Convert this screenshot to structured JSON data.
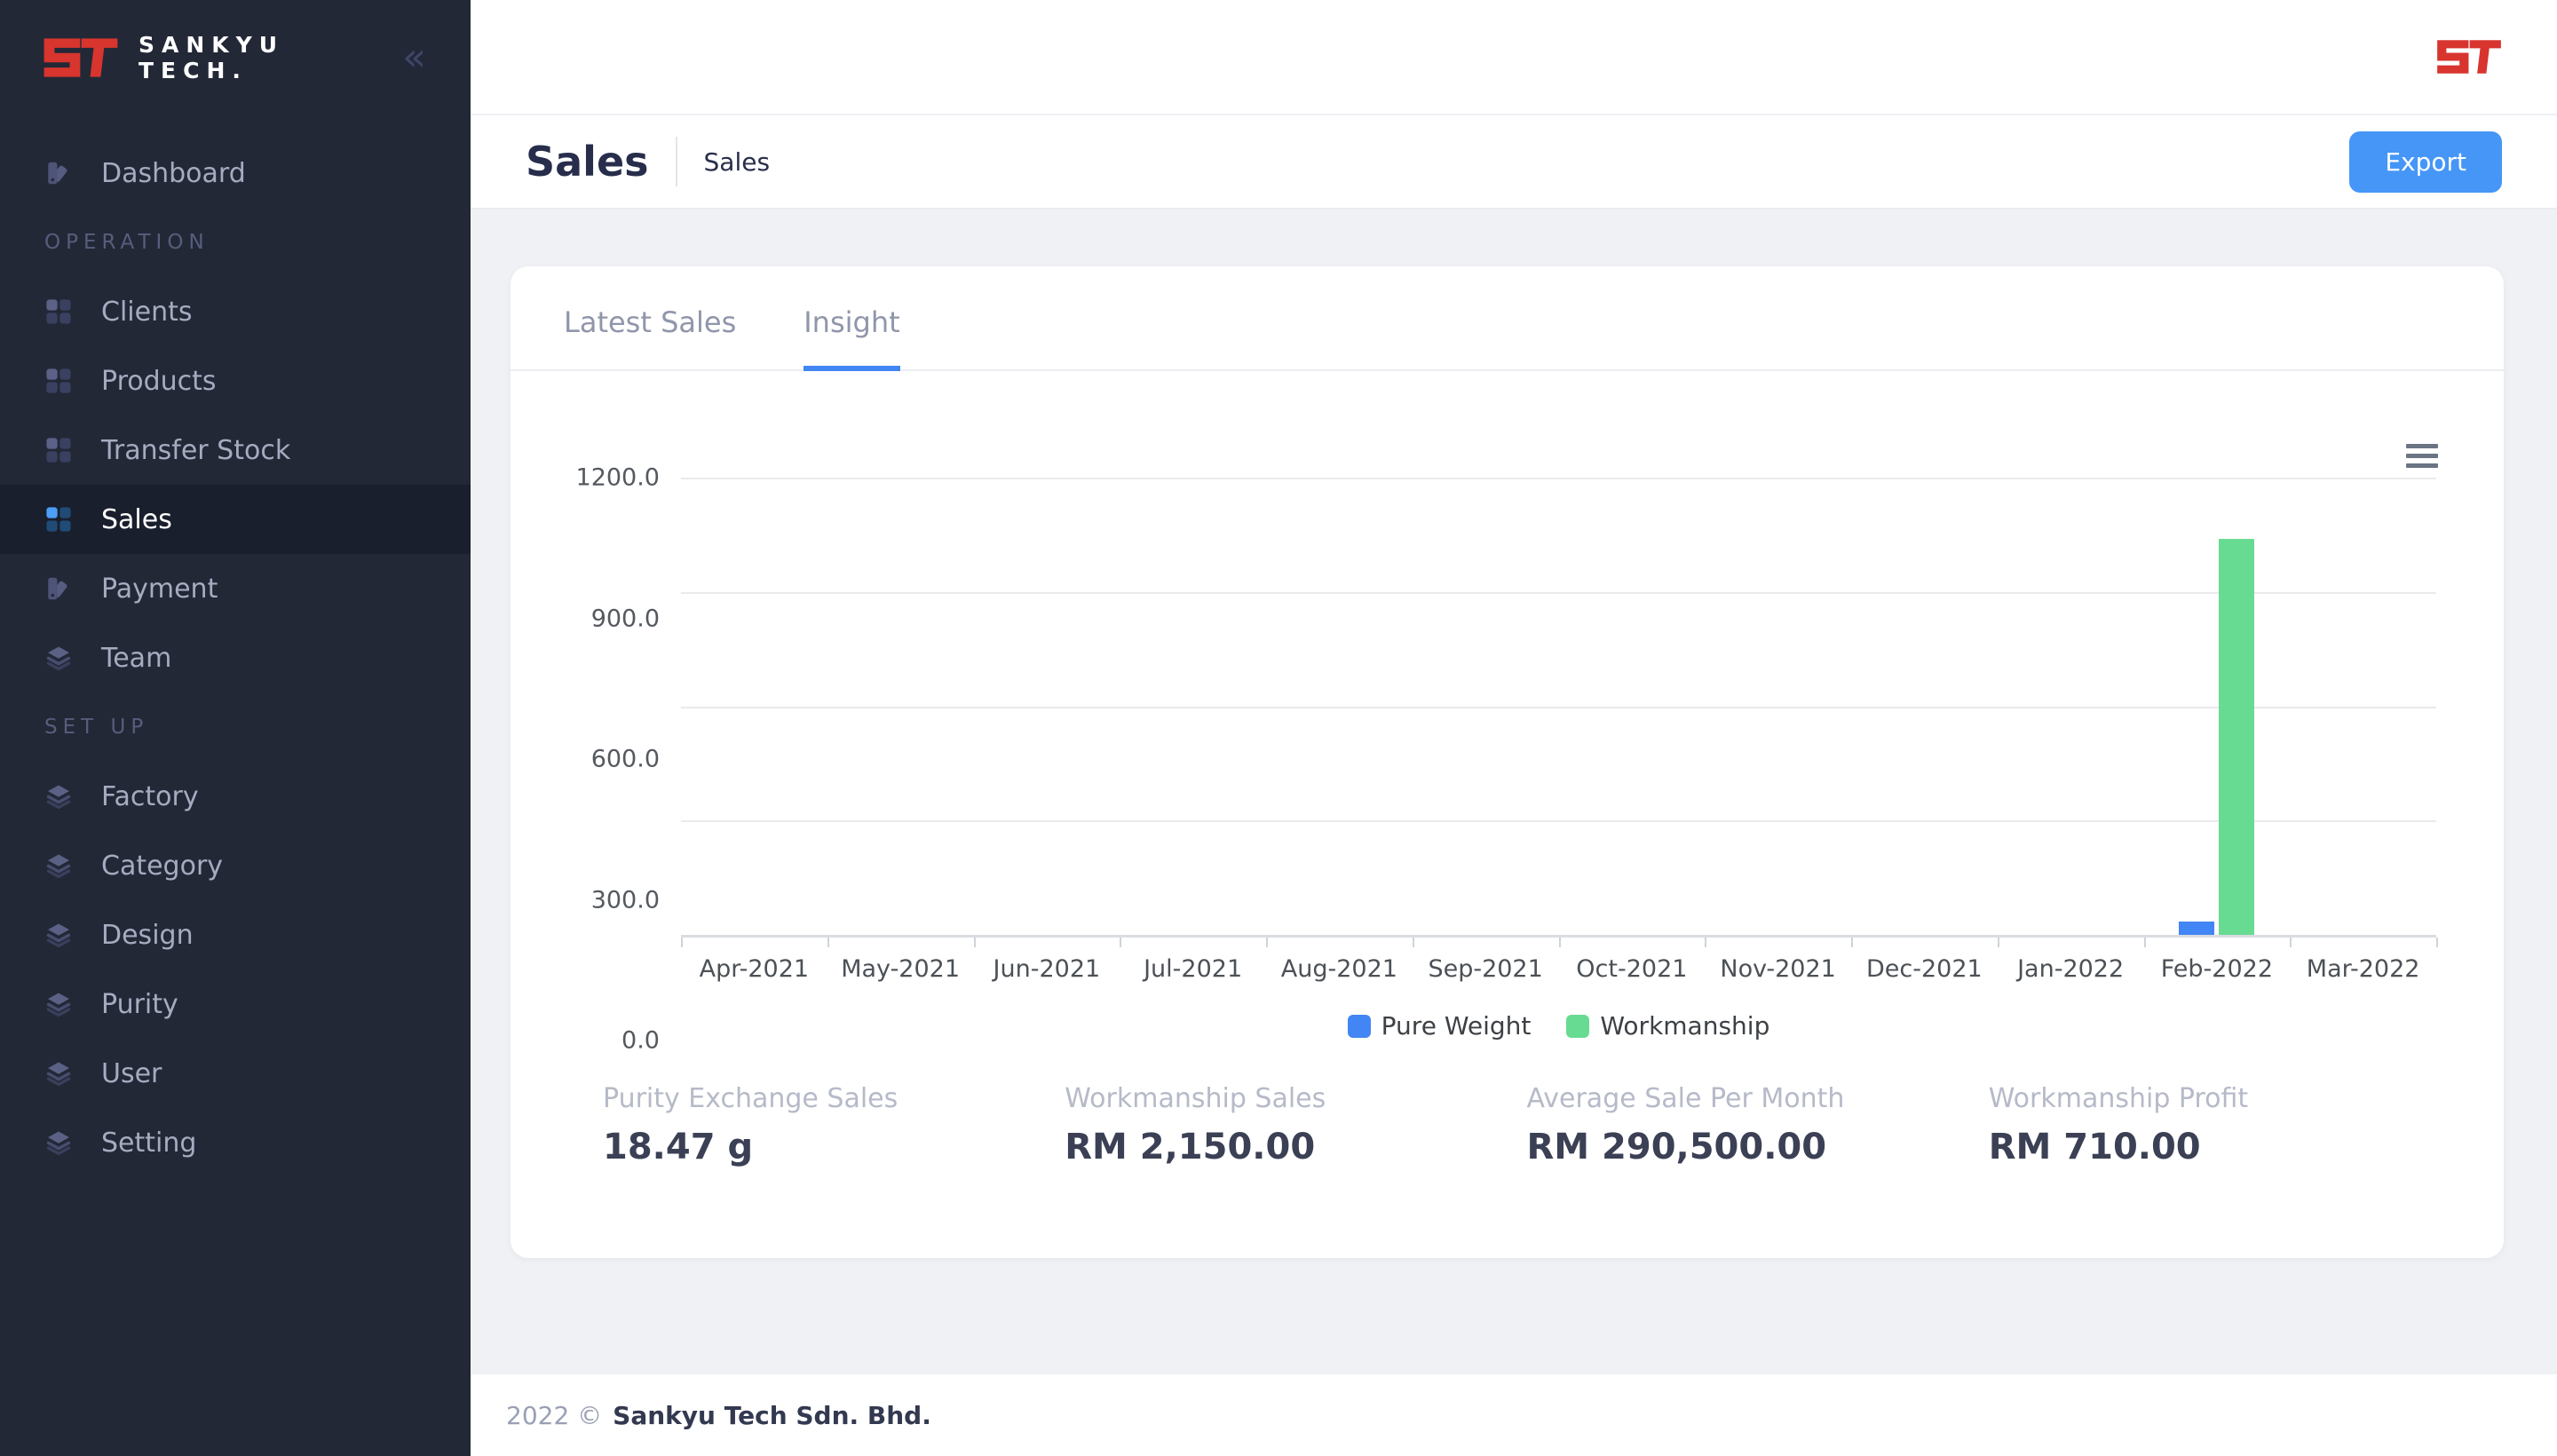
{
  "sidebar": {
    "brand": {
      "name_line1": "SANKYU",
      "name_line2": "TECH.",
      "collapse_glyph": "«"
    },
    "top_item": {
      "label": "Dashboard"
    },
    "sections": [
      {
        "label": "OPERATION",
        "items": [
          {
            "label": "Clients"
          },
          {
            "label": "Products"
          },
          {
            "label": "Transfer Stock"
          },
          {
            "label": "Sales",
            "active": true
          },
          {
            "label": "Payment"
          },
          {
            "label": "Team"
          }
        ]
      },
      {
        "label": "SET UP",
        "items": [
          {
            "label": "Factory"
          },
          {
            "label": "Category"
          },
          {
            "label": "Design"
          },
          {
            "label": "Purity"
          },
          {
            "label": "User"
          },
          {
            "label": "Setting"
          }
        ]
      }
    ]
  },
  "header": {
    "title": "Sales",
    "breadcrumb": "Sales",
    "export_label": "Export"
  },
  "card": {
    "tabs": [
      {
        "label": "Latest Sales",
        "active": false
      },
      {
        "label": "Insight",
        "active": true
      }
    ]
  },
  "chart_data": {
    "type": "bar",
    "title": "",
    "categories": [
      "Apr-2021",
      "May-2021",
      "Jun-2021",
      "Jul-2021",
      "Aug-2021",
      "Sep-2021",
      "Oct-2021",
      "Nov-2021",
      "Dec-2021",
      "Jan-2022",
      "Feb-2022",
      "Mar-2022"
    ],
    "series": [
      {
        "name": "Pure Weight",
        "color": "#4285F4",
        "values": [
          0,
          0,
          0,
          0,
          0,
          0,
          0,
          0,
          0,
          0,
          35,
          0
        ]
      },
      {
        "name": "Workmanship",
        "color": "#68DB92",
        "values": [
          0,
          0,
          0,
          0,
          0,
          0,
          0,
          0,
          0,
          0,
          1040,
          0
        ]
      }
    ],
    "ylim": [
      0,
      1200
    ],
    "ytick_labels_top_to_bottom": [
      "1200.0",
      "900.0",
      "600.0",
      "300.0",
      "0.0"
    ],
    "grid": true,
    "legend_position": "bottom"
  },
  "stats": [
    {
      "label": "Purity Exchange Sales",
      "value": "18.47 g"
    },
    {
      "label": "Workmanship Sales",
      "value": "RM 2,150.00"
    },
    {
      "label": "Average Sale Per Month",
      "value": "RM 290,500.00"
    },
    {
      "label": "Workmanship Profit",
      "value": "RM 710.00"
    }
  ],
  "footer": {
    "year": "2022 ©",
    "company": "Sankyu Tech Sdn. Bhd."
  },
  "colors": {
    "brand_red": "#D7352E",
    "accent_blue": "#4285F4",
    "accent_green": "#68DB92",
    "export_button": "#4596F7",
    "sidebar_bg": "#232837",
    "sidebar_active_bg": "#1A1F2D"
  }
}
